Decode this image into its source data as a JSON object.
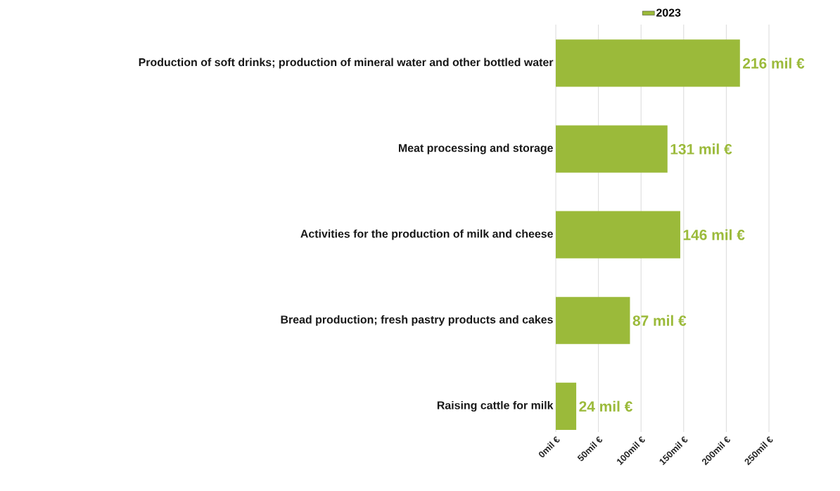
{
  "chart_data": {
    "type": "bar",
    "orientation": "horizontal",
    "categories": [
      "Production of soft drinks; production of mineral water and other bottled water",
      "Meat processing and storage",
      "Activities for the production of milk and cheese",
      "Bread production; fresh pastry products and cakes",
      "Raising cattle for milk"
    ],
    "series": [
      {
        "name": "2023",
        "color": "#9bba3a",
        "values": [
          216,
          131,
          146,
          87,
          24
        ],
        "value_labels": [
          "216 mil €",
          "131 mil €",
          "146 mil €",
          "87 mil €",
          "24 mil €"
        ]
      }
    ],
    "xlim": [
      0,
      250
    ],
    "xticks": [
      {
        "value": 0,
        "label": "0mil €"
      },
      {
        "value": 50,
        "label": "50mil €"
      },
      {
        "value": 100,
        "label": "100mil €"
      },
      {
        "value": 150,
        "label": "150mil €"
      },
      {
        "value": 200,
        "label": "200mil €"
      },
      {
        "value": 250,
        "label": "250mil €"
      }
    ],
    "grid": "x",
    "legend": "top"
  }
}
